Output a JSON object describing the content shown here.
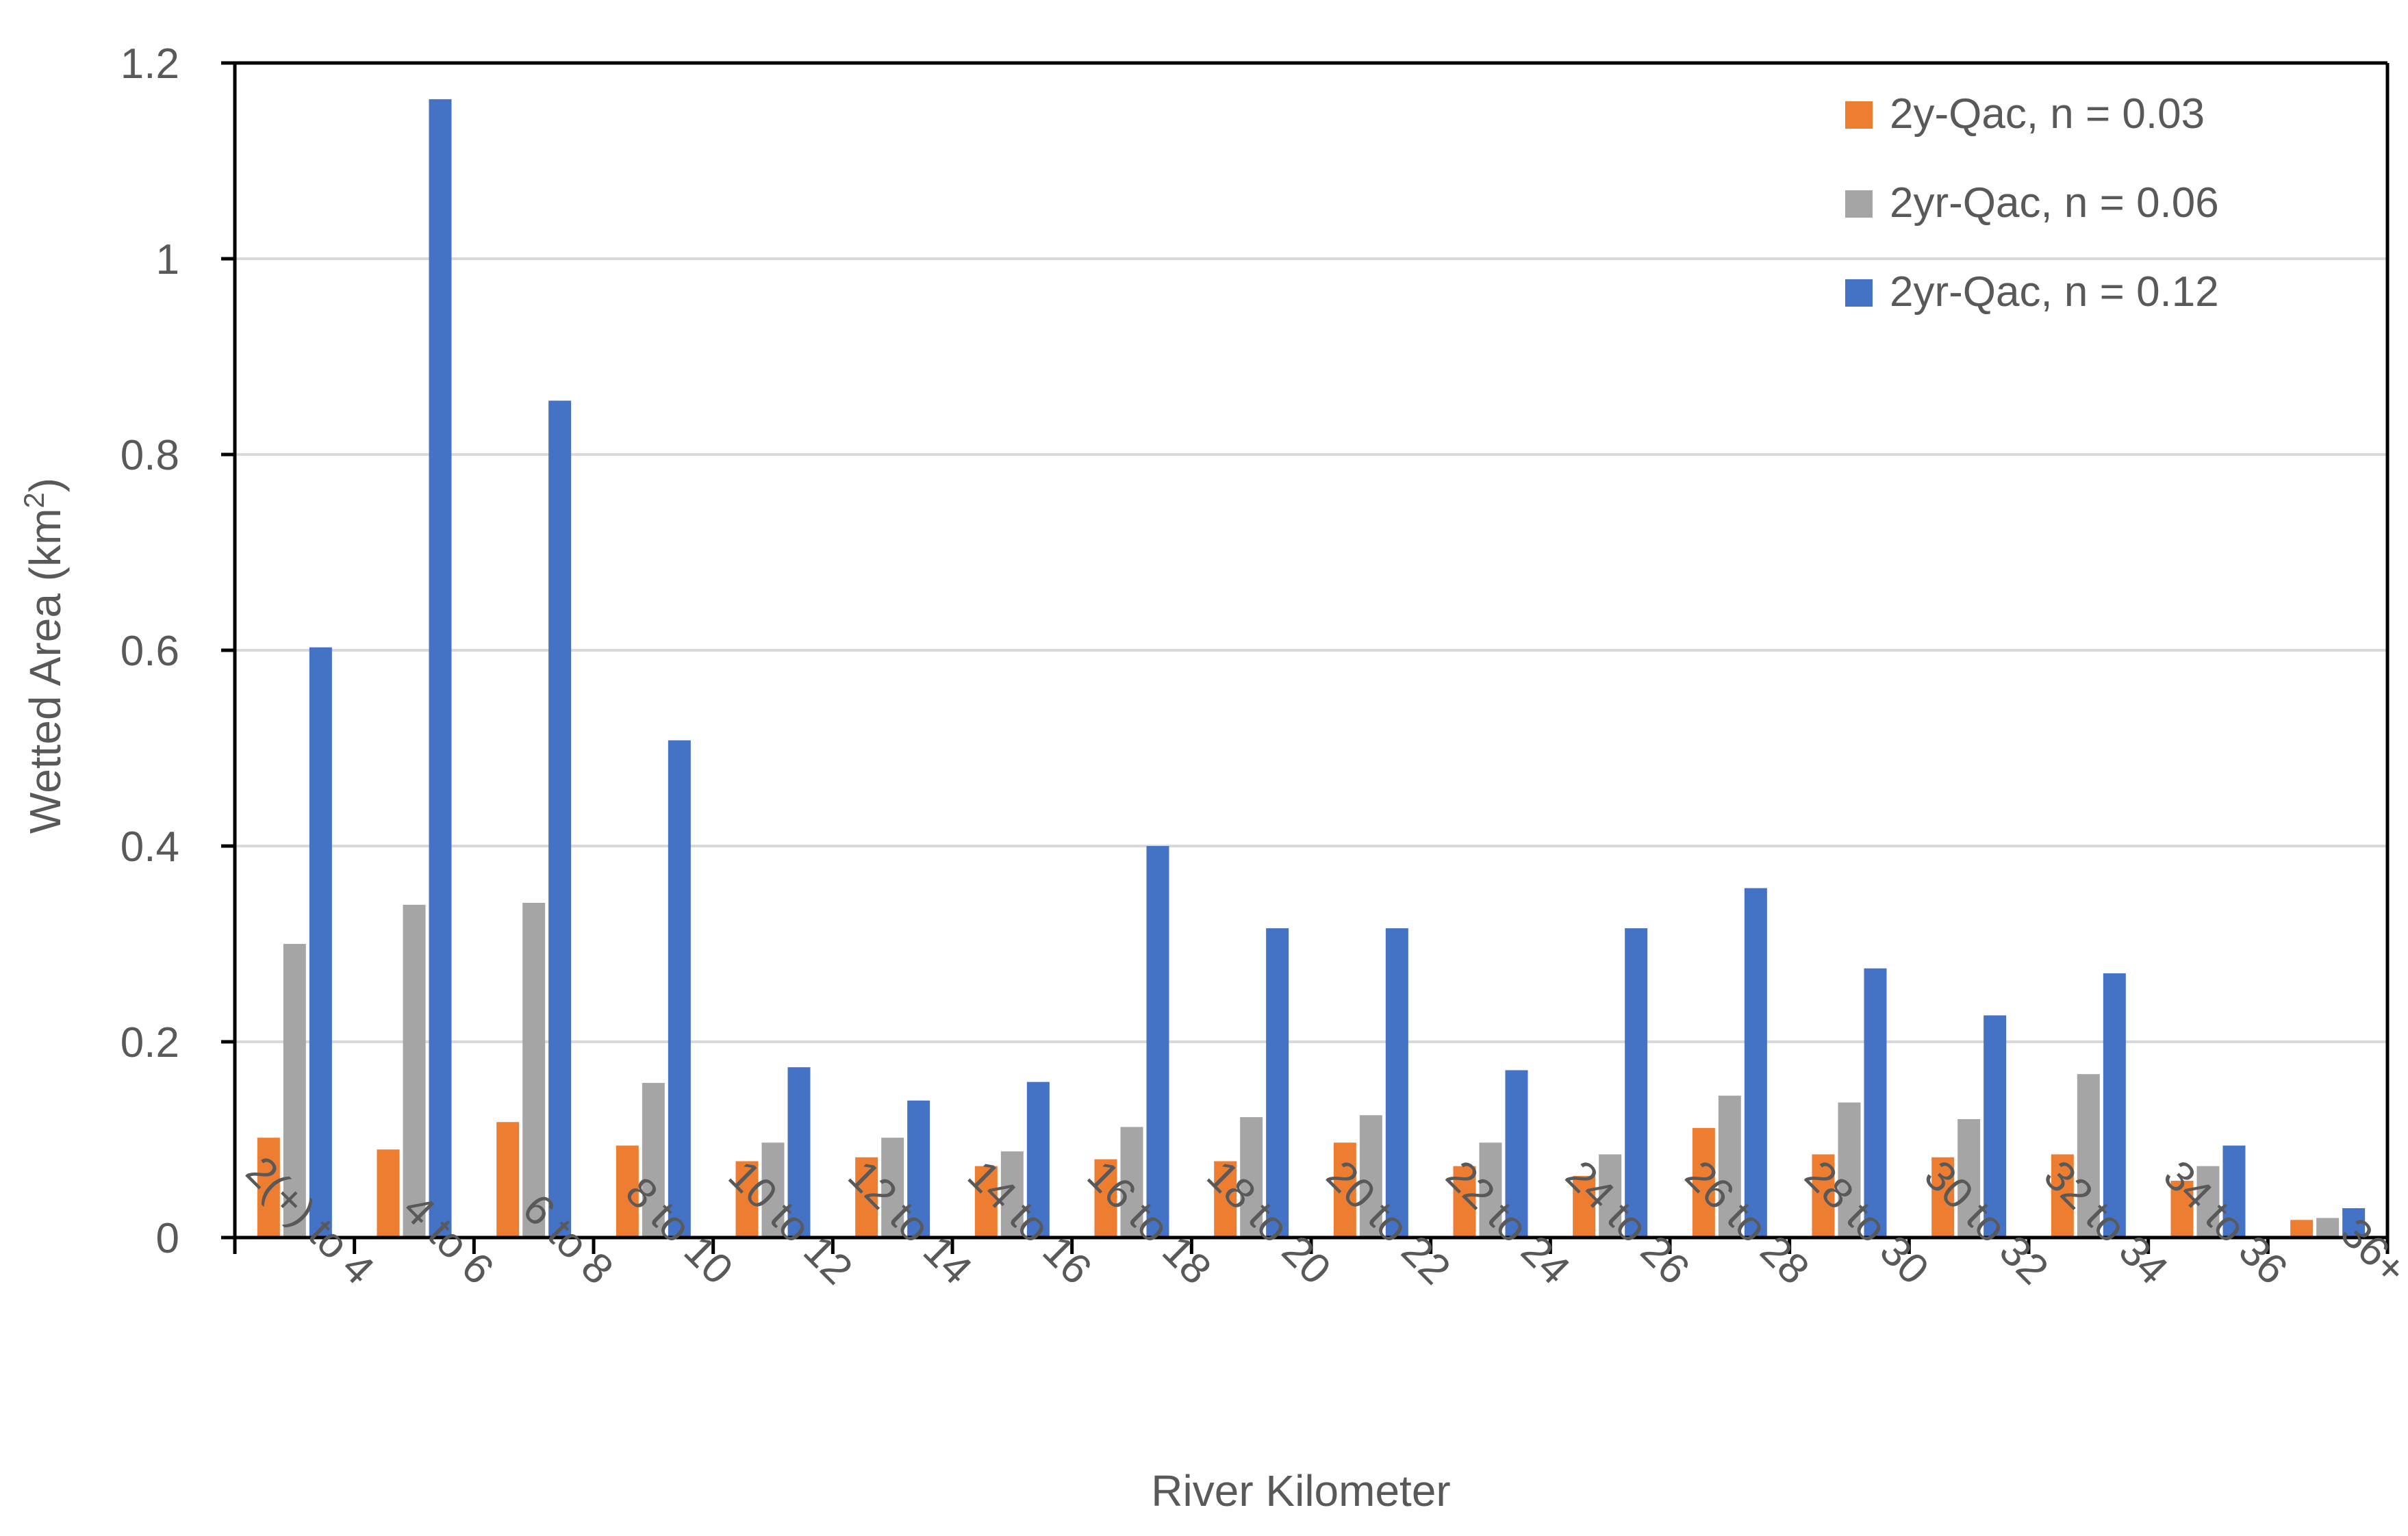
{
  "chart_data": {
    "type": "bar",
    "categories": [
      "2(+) to 4",
      "4 to 6",
      "6 to 8",
      "8 to 10",
      "10 to 12",
      "12 to 14",
      "14 to 16",
      "16 to 18",
      "18 to 20",
      "20 to 22",
      "22 to 24",
      "24 to 26",
      "26 to 28",
      "28 to 30",
      "30 to 32",
      "32 to 34",
      "34 to 36",
      "36+"
    ],
    "series": [
      {
        "name": "2y-Qac, n = 0.03",
        "color": "#ED7D31",
        "values": [
          0.102,
          0.09,
          0.118,
          0.094,
          0.078,
          0.082,
          0.073,
          0.08,
          0.078,
          0.097,
          0.073,
          0.063,
          0.112,
          0.085,
          0.082,
          0.085,
          0.058,
          0.018
        ]
      },
      {
        "name": "2yr-Qac, n = 0.06",
        "color": "#A5A5A5",
        "values": [
          0.3,
          0.34,
          0.342,
          0.158,
          0.097,
          0.102,
          0.088,
          0.113,
          0.123,
          0.125,
          0.097,
          0.085,
          0.145,
          0.138,
          0.121,
          0.167,
          0.073,
          0.02
        ]
      },
      {
        "name": "2yr-Qac, n = 0.12",
        "color": "#4472C4",
        "values": [
          0.603,
          1.163,
          0.855,
          0.508,
          0.174,
          0.14,
          0.159,
          0.4,
          0.316,
          0.316,
          0.171,
          0.316,
          0.357,
          0.275,
          0.227,
          0.27,
          0.094,
          0.03
        ]
      }
    ],
    "xlabel": "River Kilometer",
    "ylabel": "Wetted Area (km",
    "ylabel_superscript": "2",
    "ylabel_suffix": ")",
    "ylim": [
      0,
      1.2
    ],
    "yticks": [
      "0",
      "0.2",
      "0.4",
      "0.6",
      "0.8",
      "1",
      "1.2"
    ],
    "grid": true,
    "legend_position": "top-right"
  }
}
